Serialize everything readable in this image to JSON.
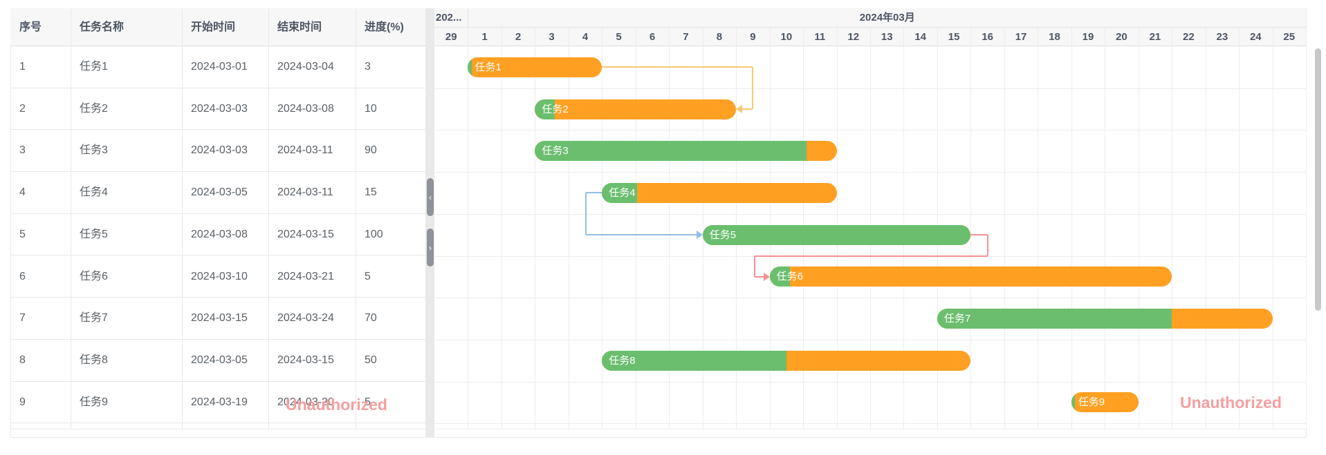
{
  "watermark": {
    "text": "Unauthorized"
  },
  "table": {
    "headers": [
      "序号",
      "任务名称",
      "开始时间",
      "结束时间",
      "进度(%)"
    ]
  },
  "timeline": {
    "months": [
      {
        "label": "202...",
        "startCol": 0,
        "endCol": 1
      },
      {
        "label": "2024年03月",
        "startCol": 1,
        "endCol": 26
      }
    ],
    "days": [
      "29",
      "1",
      "2",
      "3",
      "4",
      "5",
      "6",
      "7",
      "8",
      "9",
      "10",
      "11",
      "12",
      "13",
      "14",
      "15",
      "16",
      "17",
      "18",
      "19",
      "20",
      "21",
      "22",
      "23",
      "24",
      "25"
    ]
  },
  "splitter": {
    "collapse_icon": "‹",
    "expand_icon": "›"
  },
  "chart_data": {
    "type": "gantt",
    "title": "",
    "x_axis": {
      "month_labels": [
        "202...",
        "2024年03月"
      ],
      "visible_days": "2024-02-29 to 2024-03-25"
    },
    "tasks": [
      {
        "id": "1",
        "name": "任务1",
        "start": "2024-03-01",
        "end": "2024-03-04",
        "progress": 3
      },
      {
        "id": "2",
        "name": "任务2",
        "start": "2024-03-03",
        "end": "2024-03-08",
        "progress": 10
      },
      {
        "id": "3",
        "name": "任务3",
        "start": "2024-03-03",
        "end": "2024-03-11",
        "progress": 90
      },
      {
        "id": "4",
        "name": "任务4",
        "start": "2024-03-05",
        "end": "2024-03-11",
        "progress": 15
      },
      {
        "id": "5",
        "name": "任务5",
        "start": "2024-03-08",
        "end": "2024-03-15",
        "progress": 100
      },
      {
        "id": "6",
        "name": "任务6",
        "start": "2024-03-10",
        "end": "2024-03-21",
        "progress": 5
      },
      {
        "id": "7",
        "name": "任务7",
        "start": "2024-03-15",
        "end": "2024-03-24",
        "progress": 70
      },
      {
        "id": "8",
        "name": "任务8",
        "start": "2024-03-05",
        "end": "2024-03-15",
        "progress": 50
      },
      {
        "id": "9",
        "name": "任务9",
        "start": "2024-03-19",
        "end": "2024-03-20",
        "progress": 5
      }
    ],
    "dependencies": [
      {
        "from": 1,
        "to": 2,
        "style": "end-loop-left",
        "color": "#f7c873"
      },
      {
        "from": 4,
        "to": 5,
        "style": "start-to-start",
        "color": "#94bce9"
      },
      {
        "from": 5,
        "to": 6,
        "style": "end-to-start",
        "color": "#f59191"
      }
    ],
    "colors": {
      "bar": "#ffa022",
      "progress": "#6abe6e"
    },
    "legend": null,
    "grid": true
  }
}
